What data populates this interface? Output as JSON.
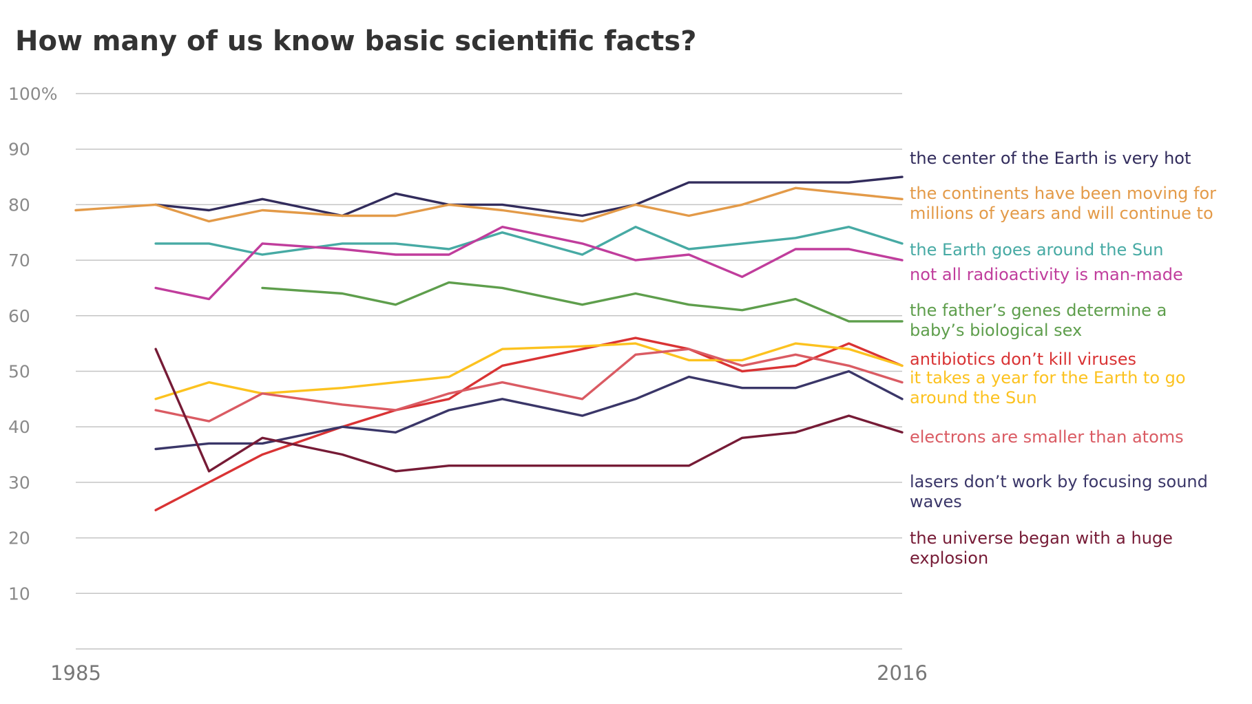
{
  "chart_data": {
    "type": "line",
    "title": "How many of us know basic scientific facts?",
    "ylim": [
      0,
      100
    ],
    "y_ticks": [
      {
        "value": 100,
        "label": "100%"
      },
      {
        "value": 90,
        "label": "90"
      },
      {
        "value": 80,
        "label": "80"
      },
      {
        "value": 70,
        "label": "70"
      },
      {
        "value": 60,
        "label": "60"
      },
      {
        "value": 50,
        "label": "50"
      },
      {
        "value": 40,
        "label": "40"
      },
      {
        "value": 30,
        "label": "30"
      },
      {
        "value": 20,
        "label": "20"
      },
      {
        "value": 10,
        "label": "10"
      }
    ],
    "x_range": [
      1985,
      2016
    ],
    "x_tick_labels": [
      "1985",
      "2016"
    ],
    "legend_placement": "right, labels at line ends",
    "series": [
      {
        "name": "the center of the Earth is very hot",
        "color": "#322c5c",
        "points": [
          [
            1988,
            80
          ],
          [
            1990,
            79
          ],
          [
            1992,
            81
          ],
          [
            1995,
            78
          ],
          [
            1997,
            82
          ],
          [
            1999,
            80
          ],
          [
            2001,
            80
          ],
          [
            2004,
            78
          ],
          [
            2006,
            80
          ],
          [
            2008,
            84
          ],
          [
            2010,
            84
          ],
          [
            2012,
            84
          ],
          [
            2014,
            84
          ],
          [
            2016,
            85
          ]
        ]
      },
      {
        "name": "the continents have been moving for millions of years and will continue to",
        "color": "#e39a48",
        "points": [
          [
            1985,
            79
          ],
          [
            1988,
            80
          ],
          [
            1990,
            77
          ],
          [
            1992,
            79
          ],
          [
            1995,
            78
          ],
          [
            1997,
            78
          ],
          [
            1999,
            80
          ],
          [
            2001,
            79
          ],
          [
            2004,
            77
          ],
          [
            2006,
            80
          ],
          [
            2008,
            78
          ],
          [
            2010,
            80
          ],
          [
            2012,
            83
          ],
          [
            2014,
            82
          ],
          [
            2016,
            81
          ]
        ]
      },
      {
        "name": "the Earth goes around the Sun",
        "color": "#47aaa4",
        "points": [
          [
            1988,
            73
          ],
          [
            1990,
            73
          ],
          [
            1992,
            71
          ],
          [
            1995,
            73
          ],
          [
            1997,
            73
          ],
          [
            1999,
            72
          ],
          [
            2001,
            75
          ],
          [
            2004,
            71
          ],
          [
            2006,
            76
          ],
          [
            2008,
            72
          ],
          [
            2010,
            73
          ],
          [
            2012,
            74
          ],
          [
            2014,
            76
          ],
          [
            2016,
            73
          ]
        ]
      },
      {
        "name": "not all radioactivity is man-made",
        "color": "#c03d9c",
        "points": [
          [
            1988,
            65
          ],
          [
            1990,
            63
          ],
          [
            1992,
            73
          ],
          [
            1995,
            72
          ],
          [
            1997,
            71
          ],
          [
            1999,
            71
          ],
          [
            2001,
            76
          ],
          [
            2004,
            73
          ],
          [
            2006,
            70
          ],
          [
            2008,
            71
          ],
          [
            2010,
            67
          ],
          [
            2012,
            72
          ],
          [
            2014,
            72
          ],
          [
            2016,
            70
          ]
        ]
      },
      {
        "name": "the father's genes determine a baby's biological sex",
        "color": "#5e9e4c",
        "points": [
          [
            1992,
            65
          ],
          [
            1995,
            64
          ],
          [
            1997,
            62
          ],
          [
            1999,
            66
          ],
          [
            2001,
            65
          ],
          [
            2004,
            62
          ],
          [
            2006,
            64
          ],
          [
            2008,
            62
          ],
          [
            2010,
            61
          ],
          [
            2012,
            63
          ],
          [
            2014,
            59
          ],
          [
            2016,
            59
          ]
        ]
      },
      {
        "name": "antibiotics don't kill viruses",
        "color": "#d93334",
        "points": [
          [
            1988,
            25
          ],
          [
            1990,
            30
          ],
          [
            1992,
            35
          ],
          [
            1995,
            40
          ],
          [
            1997,
            43
          ],
          [
            1999,
            45
          ],
          [
            2001,
            51
          ],
          [
            2004,
            54
          ],
          [
            2006,
            56
          ],
          [
            2008,
            54
          ],
          [
            2010,
            50
          ],
          [
            2012,
            51
          ],
          [
            2014,
            55
          ],
          [
            2016,
            51
          ]
        ]
      },
      {
        "name": "it takes a year for the Earth to go around the Sun",
        "color": "#fcc21f",
        "points": [
          [
            1988,
            45
          ],
          [
            1990,
            48
          ],
          [
            1992,
            46
          ],
          [
            1995,
            47
          ],
          [
            1997,
            48
          ],
          [
            1999,
            49
          ],
          [
            2001,
            54
          ],
          [
            2004,
            54.5
          ],
          [
            2006,
            55
          ],
          [
            2008,
            52
          ],
          [
            2010,
            52
          ],
          [
            2012,
            55
          ],
          [
            2014,
            54
          ],
          [
            2016,
            51
          ]
        ]
      },
      {
        "name": "electrons are smaller than atoms",
        "color": "#da5b63",
        "points": [
          [
            1988,
            43
          ],
          [
            1990,
            41
          ],
          [
            1992,
            46
          ],
          [
            1995,
            44
          ],
          [
            1997,
            43
          ],
          [
            1999,
            46
          ],
          [
            2001,
            48
          ],
          [
            2004,
            45
          ],
          [
            2006,
            53
          ],
          [
            2008,
            54
          ],
          [
            2010,
            51
          ],
          [
            2012,
            53
          ],
          [
            2014,
            51
          ],
          [
            2016,
            48
          ]
        ]
      },
      {
        "name": "lasers don't work by focusing sound waves",
        "color": "#3a3668",
        "points": [
          [
            1988,
            36
          ],
          [
            1990,
            37
          ],
          [
            1992,
            37
          ],
          [
            1995,
            40
          ],
          [
            1997,
            39
          ],
          [
            1999,
            43
          ],
          [
            2001,
            45
          ],
          [
            2004,
            42
          ],
          [
            2006,
            45
          ],
          [
            2008,
            49
          ],
          [
            2010,
            47
          ],
          [
            2012,
            47
          ],
          [
            2014,
            50
          ],
          [
            2016,
            45
          ]
        ]
      },
      {
        "name": "the universe began with a huge explosion",
        "color": "#761b36",
        "points": [
          [
            1988,
            54
          ],
          [
            1990,
            32
          ],
          [
            1992,
            38
          ],
          [
            1995,
            35
          ],
          [
            1997,
            32
          ],
          [
            1999,
            33
          ],
          [
            2001,
            33
          ],
          [
            2004,
            33
          ],
          [
            2006,
            33
          ],
          [
            2008,
            33
          ],
          [
            2010,
            38
          ],
          [
            2012,
            39
          ],
          [
            2014,
            42
          ],
          [
            2016,
            39
          ]
        ]
      }
    ]
  },
  "labels": [
    {
      "lines": [
        "the center of the Earth is very hot"
      ],
      "color": "#322c5c"
    },
    {
      "lines": [
        "the continents have been moving for",
        "millions of years and will continue to"
      ],
      "color": "#e39a48"
    },
    {
      "lines": [
        "the Earth goes around the Sun"
      ],
      "color": "#47aaa4"
    },
    {
      "lines": [
        "not all radioactivity is man-made"
      ],
      "color": "#c03d9c"
    },
    {
      "lines": [
        "the father’s genes determine a",
        "baby’s biological sex"
      ],
      "color": "#5e9e4c"
    },
    {
      "lines": [
        "antibiotics don’t kill viruses"
      ],
      "color": "#d93334"
    },
    {
      "lines": [
        "it takes a year for the Earth to go",
        "around the Sun"
      ],
      "color": "#fcc21f"
    },
    {
      "lines": [
        "electrons are smaller than atoms"
      ],
      "color": "#da5b63"
    },
    {
      "lines": [
        "lasers don’t work by focusing sound",
        "waves"
      ],
      "color": "#3a3668"
    },
    {
      "lines": [
        "the universe began with a huge",
        "explosion"
      ],
      "color": "#761b36"
    }
  ]
}
